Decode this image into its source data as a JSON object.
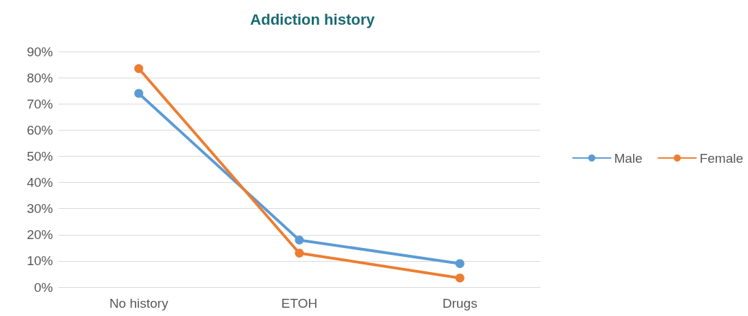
{
  "chart_data": {
    "type": "line",
    "title": "Addiction history",
    "categories": [
      "No history",
      "ETOH",
      "Drugs"
    ],
    "series": [
      {
        "name": "Male",
        "color": "#5b9bd5",
        "values": [
          74,
          18,
          9
        ]
      },
      {
        "name": "Female",
        "color": "#ed7d31",
        "values": [
          83.5,
          13,
          3.5
        ]
      }
    ],
    "ylim": [
      0,
      90
    ],
    "yticks": [
      {
        "value": 0,
        "label": "0%"
      },
      {
        "value": 10,
        "label": "10%"
      },
      {
        "value": 20,
        "label": "20%"
      },
      {
        "value": 30,
        "label": "30%"
      },
      {
        "value": 40,
        "label": "40%"
      },
      {
        "value": 50,
        "label": "50%"
      },
      {
        "value": 60,
        "label": "60%"
      },
      {
        "value": 70,
        "label": "70%"
      },
      {
        "value": 80,
        "label": "80%"
      },
      {
        "value": 90,
        "label": "90%"
      }
    ],
    "grid": "y",
    "legend": "right",
    "marker": "circle",
    "line_style": "solid"
  }
}
